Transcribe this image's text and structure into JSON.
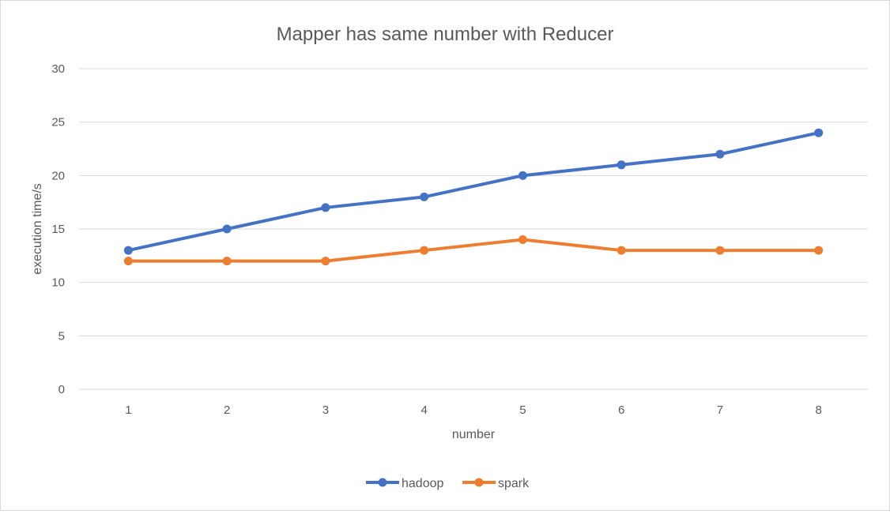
{
  "chart_data": {
    "type": "line",
    "title": "Mapper has same number with Reducer",
    "xlabel": "number",
    "ylabel": "execution time/s",
    "categories": [
      "1",
      "2",
      "3",
      "4",
      "5",
      "6",
      "7",
      "8"
    ],
    "ylim": [
      0,
      30
    ],
    "yticks": [
      0,
      5,
      10,
      15,
      20,
      25,
      30
    ],
    "grid": true,
    "legend_position": "bottom",
    "series": [
      {
        "name": "hadoop",
        "color": "#4472C4",
        "values": [
          13,
          15,
          17,
          18,
          20,
          21,
          22,
          24
        ]
      },
      {
        "name": "spark",
        "color": "#ED7D31",
        "values": [
          12,
          12,
          12,
          13,
          14,
          13,
          13,
          13
        ]
      }
    ]
  }
}
